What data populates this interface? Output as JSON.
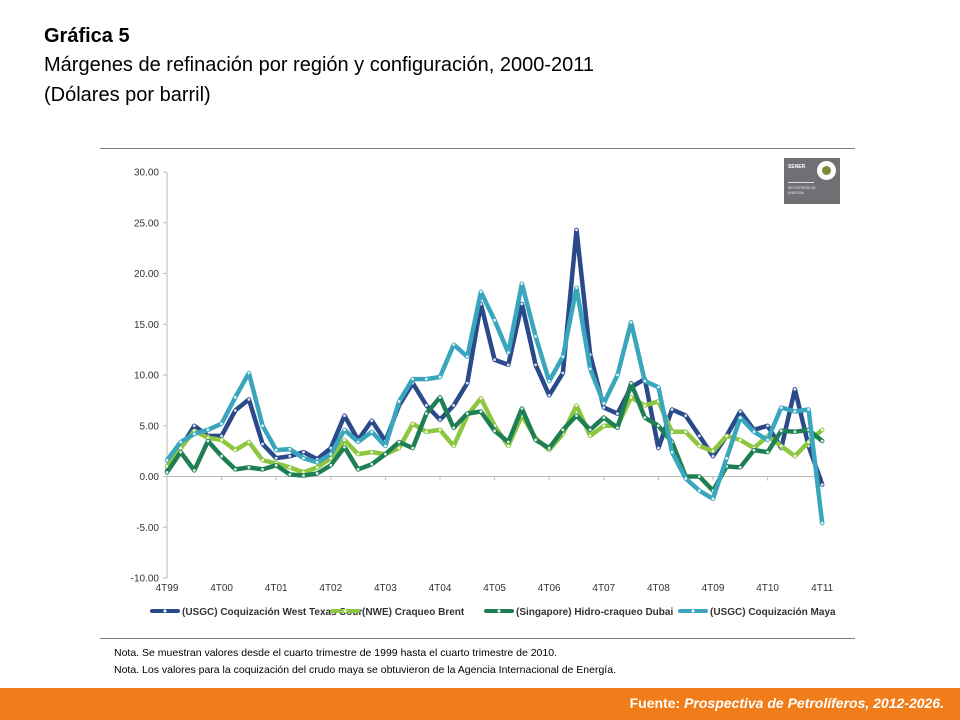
{
  "header": {
    "title": "Gráfica 5",
    "subtitle": "Márgenes de refinación por región y configuración, 2000-2011",
    "units": "(Dólares por barril)"
  },
  "notes": [
    "Nota. Se muestran valores desde el cuarto trimestre de 1999 hasta el cuarto trimestre de 2010.",
    "Nota. Los valores para la coquización del crudo maya se obtuvieron de la Agencia Internacional de Energía."
  ],
  "footer": {
    "label": "Fuente:",
    "source": "Prospectiva de Petrolíferos, 2012-2026."
  },
  "logo": {
    "text": "SENER",
    "subtext": "SECRETARÍA DE ENERGÍA"
  },
  "chart_data": {
    "type": "line",
    "ylim": [
      -10,
      30
    ],
    "yticks": [
      -10,
      -5,
      0,
      5,
      10,
      15,
      20,
      25,
      30
    ],
    "ytick_labels": [
      "-10.00",
      "-5.00",
      "0.00",
      "5.00",
      "10.00",
      "15.00",
      "20.00",
      "25.00",
      "30.00"
    ],
    "xtick_labels": [
      "4T99",
      "4T00",
      "4T01",
      "4T02",
      "4T03",
      "4T04",
      "4T05",
      "4T06",
      "4T07",
      "4T08",
      "4T09",
      "4T10",
      "4T11"
    ],
    "points_per_tick": 4,
    "grid": false,
    "legend_position": "bottom",
    "series": [
      {
        "name": "(USGC) Coquización West Texas Sour",
        "color": "#2a4a8a",
        "marker": "triangle",
        "values": [
          0.5,
          2.8,
          5.0,
          4.0,
          4.0,
          6.5,
          7.6,
          3.2,
          1.8,
          2.0,
          2.4,
          1.7,
          2.8,
          6.0,
          3.6,
          5.5,
          3.5,
          7.0,
          9.2,
          7.0,
          5.6,
          7.0,
          9.2,
          17.0,
          11.5,
          11.0,
          17.0,
          11.0,
          8.0,
          10.2,
          24.3,
          12.0,
          6.8,
          6.2,
          8.8,
          9.6,
          2.8,
          6.6,
          6.0,
          4.0,
          2.0,
          4.0,
          6.4,
          4.6,
          5.0,
          2.8,
          8.6,
          3.0,
          -0.8
        ]
      },
      {
        "name": "(NWE) Craqueo Brent",
        "color": "#8dc63f",
        "marker": "diamond",
        "values": [
          1.0,
          2.8,
          4.5,
          3.8,
          3.6,
          2.6,
          3.4,
          1.6,
          1.3,
          0.9,
          0.4,
          0.9,
          1.8,
          3.6,
          2.2,
          2.4,
          2.2,
          2.8,
          5.2,
          4.4,
          4.6,
          3.0,
          6.0,
          7.7,
          5.0,
          3.0,
          6.0,
          3.8,
          2.6,
          4.2,
          7.0,
          4.0,
          5.0,
          5.0,
          7.8,
          7.0,
          7.4,
          4.4,
          4.4,
          3.0,
          2.5,
          4.0,
          3.6,
          2.8,
          4.0,
          3.0,
          2.0,
          3.4,
          4.6
        ]
      },
      {
        "name": "(Singapore) Hidro-craqueo Dubai",
        "color": "#1e7f55",
        "marker": "circle",
        "values": [
          0.4,
          2.4,
          0.6,
          3.5,
          2.0,
          0.7,
          0.9,
          0.7,
          1.1,
          0.2,
          0.1,
          0.3,
          1.1,
          2.9,
          0.7,
          1.2,
          2.2,
          3.4,
          2.8,
          6.2,
          7.8,
          4.8,
          6.2,
          6.4,
          4.5,
          3.4,
          6.7,
          3.6,
          2.8,
          4.6,
          6.0,
          4.6,
          5.8,
          4.8,
          9.2,
          5.8,
          5.0,
          3.4,
          0.0,
          0.0,
          -1.4,
          1.0,
          0.9,
          2.6,
          2.4,
          4.5,
          4.4,
          4.6,
          3.5
        ]
      },
      {
        "name": "(USGC) Coquización Maya",
        "color": "#3aa6bd",
        "marker": "circle",
        "values": [
          1.6,
          3.4,
          4.2,
          4.6,
          5.2,
          7.8,
          10.2,
          5.0,
          2.6,
          2.7,
          1.8,
          1.4,
          2.2,
          4.6,
          3.4,
          4.4,
          3.0,
          7.4,
          9.6,
          9.6,
          9.8,
          13.0,
          11.8,
          18.2,
          15.4,
          12.2,
          19.0,
          13.8,
          9.4,
          11.8,
          18.6,
          10.6,
          7.2,
          10.0,
          15.2,
          9.4,
          8.8,
          2.4,
          -0.2,
          -1.4,
          -2.2,
          1.8,
          5.8,
          4.4,
          3.6,
          6.8,
          6.4,
          6.6,
          -4.6
        ]
      }
    ]
  }
}
